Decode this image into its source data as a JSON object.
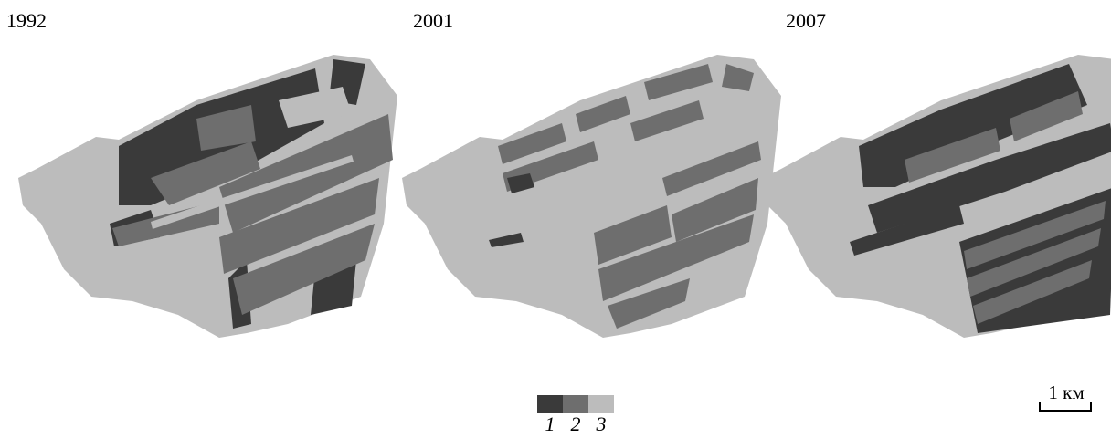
{
  "years": [
    "1992",
    "2001",
    "2007"
  ],
  "legend": {
    "classes": [
      {
        "label": "1",
        "color": "#3a3a3a"
      },
      {
        "label": "2",
        "color": "#6e6e6e"
      },
      {
        "label": "3",
        "color": "#bcbcbc"
      }
    ]
  },
  "scale": {
    "label": "1 км"
  },
  "colors": {
    "class1": "#3a3a3a",
    "class2": "#6e6e6e",
    "class3": "#bcbcbc"
  },
  "maps": [
    {
      "year": "1992",
      "dominant_classes": [
        "1",
        "2",
        "3"
      ]
    },
    {
      "year": "2001",
      "dominant_classes": [
        "2",
        "3"
      ]
    },
    {
      "year": "2007",
      "dominant_classes": [
        "1",
        "2",
        "3"
      ]
    }
  ]
}
